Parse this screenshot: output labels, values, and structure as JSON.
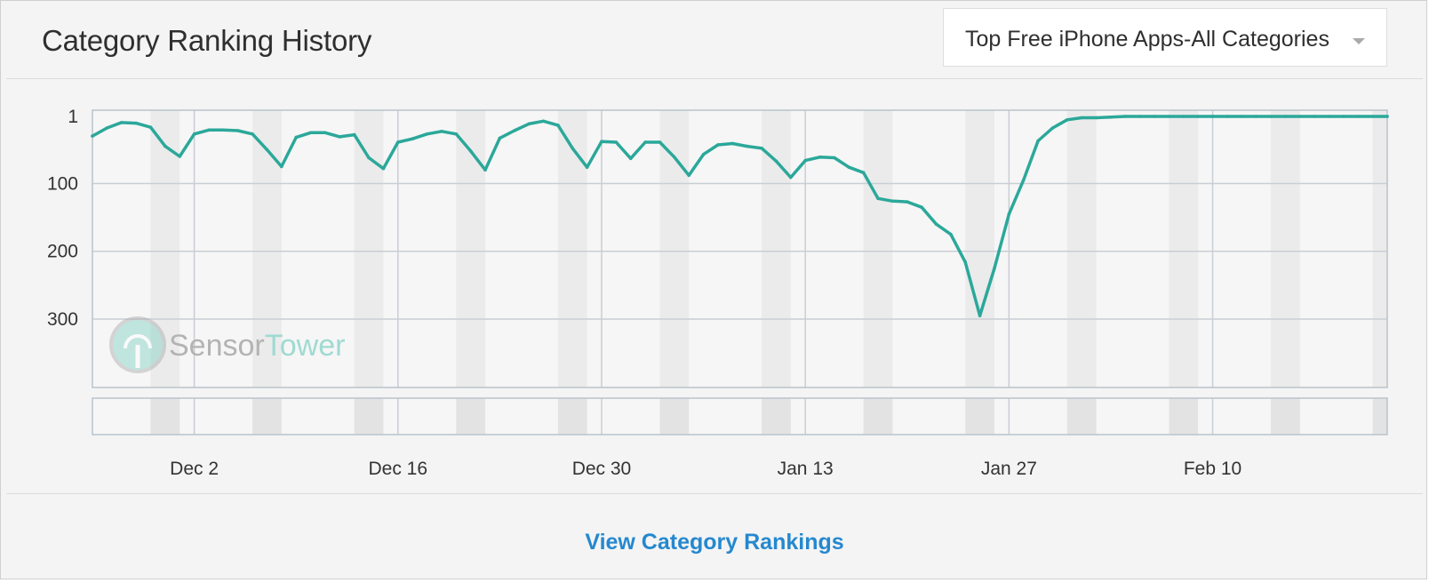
{
  "header": {
    "title": "Category Ranking History",
    "dropdown_selected": "Top Free iPhone Apps-All Categories"
  },
  "footer": {
    "link_label": "View Category Rankings"
  },
  "watermark": {
    "part1": "Sensor",
    "part2": "Tower"
  },
  "colors": {
    "line": "#2ba89a",
    "stripe": "#ebebeb",
    "grid": "#c9ced4"
  },
  "icons": {
    "dropdown": "caret-down-icon",
    "watermark": "sensor-tower-logo"
  },
  "chart_data": {
    "type": "line",
    "title": "Category Ranking History",
    "y_axis": {
      "inverted": true,
      "ticks": [
        1,
        100,
        200,
        300
      ],
      "range": [
        1,
        400
      ]
    },
    "x_ticks": [
      "Dec 2",
      "Dec 16",
      "Dec 30",
      "Jan 13",
      "Jan 27",
      "Feb 10"
    ],
    "x_range": [
      "Nov 25",
      "Feb 22"
    ],
    "weekend_shading": true,
    "grid": true,
    "series": [
      {
        "values": [
          [
            0,
            30
          ],
          [
            1,
            18
          ],
          [
            2,
            10
          ],
          [
            3,
            11
          ],
          [
            4,
            17
          ],
          [
            5,
            45
          ],
          [
            6,
            60
          ],
          [
            7,
            27
          ],
          [
            8,
            21
          ],
          [
            9,
            21
          ],
          [
            10,
            22
          ],
          [
            11,
            27
          ],
          [
            12,
            50
          ],
          [
            13,
            75
          ],
          [
            14,
            32
          ],
          [
            15,
            25
          ],
          [
            16,
            25
          ],
          [
            17,
            31
          ],
          [
            18,
            28
          ],
          [
            19,
            62
          ],
          [
            20,
            78
          ],
          [
            21,
            39
          ],
          [
            22,
            34
          ],
          [
            23,
            27
          ],
          [
            24,
            23
          ],
          [
            25,
            27
          ],
          [
            26,
            52
          ],
          [
            27,
            80
          ],
          [
            28,
            33
          ],
          [
            29,
            22
          ],
          [
            30,
            12
          ],
          [
            31,
            8
          ],
          [
            32,
            14
          ],
          [
            33,
            48
          ],
          [
            34,
            76
          ],
          [
            35,
            38
          ],
          [
            36,
            39
          ],
          [
            37,
            63
          ],
          [
            38,
            39
          ],
          [
            39,
            39
          ],
          [
            40,
            61
          ],
          [
            41,
            88
          ],
          [
            42,
            57
          ],
          [
            43,
            43
          ],
          [
            44,
            41
          ],
          [
            45,
            45
          ],
          [
            46,
            48
          ],
          [
            47,
            67
          ],
          [
            48,
            91
          ],
          [
            49,
            66
          ],
          [
            50,
            61
          ],
          [
            51,
            62
          ],
          [
            52,
            76
          ],
          [
            53,
            84
          ],
          [
            54,
            122
          ],
          [
            55,
            126
          ],
          [
            56,
            127
          ],
          [
            57,
            135
          ],
          [
            58,
            160
          ],
          [
            59,
            175
          ],
          [
            60,
            216
          ],
          [
            61,
            295
          ],
          [
            62,
            225
          ],
          [
            63,
            145
          ],
          [
            64,
            95
          ],
          [
            65,
            37
          ],
          [
            66,
            18
          ],
          [
            67,
            6
          ],
          [
            68,
            3
          ],
          [
            69,
            3
          ],
          [
            70,
            2
          ],
          [
            71,
            1
          ],
          [
            72,
            1
          ],
          [
            73,
            1
          ],
          [
            74,
            1
          ],
          [
            75,
            1
          ],
          [
            76,
            1
          ],
          [
            77,
            1
          ],
          [
            78,
            1
          ],
          [
            79,
            1
          ],
          [
            80,
            1
          ],
          [
            81,
            1
          ],
          [
            82,
            1
          ],
          [
            83,
            1
          ],
          [
            84,
            1
          ],
          [
            85,
            1
          ],
          [
            86,
            1
          ],
          [
            87,
            1
          ],
          [
            88,
            1
          ],
          [
            89,
            1
          ]
        ]
      }
    ]
  }
}
